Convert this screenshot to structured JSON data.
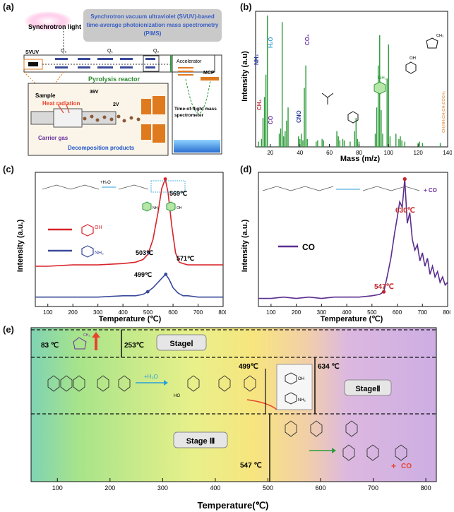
{
  "labels": {
    "a": "(a)",
    "b": "(b)",
    "c": "(c)",
    "d": "(d)",
    "e": "(e)"
  },
  "panel_a": {
    "title_line1": "Synchrotron vacuum ultraviolet (SVUV)-based",
    "title_line2": "time-average photoionization mass spectrometry",
    "title_line3": "(PIMS)",
    "synchrotron_light": "Synchrotron light",
    "svuv": "SVUV",
    "q0": "Q₀",
    "q1": "Q₁",
    "q2": "Q₂",
    "reactor": "Pyrolysis reactor",
    "accelerator": "Accelerator",
    "mcp": "MCP",
    "tof_line1": "Time-of-flight mass",
    "tof_line2": "spectrometer",
    "sample": "Sample",
    "heat": "Heat radiation",
    "v36": "36V",
    "v2": "2V",
    "carrier": "Carrier gas",
    "decomp": "Decomposition products",
    "colors": {
      "title_text": "#3a5fc4",
      "reactor_text": "#2e8b2e",
      "heat": "#e8432e",
      "carrier": "#6a2fa0",
      "decomp": "#2255cc"
    }
  },
  "panel_b": {
    "xlabel": "Mass (m/z)",
    "ylabel": "Intensity (a.u)",
    "xticks": [
      "20",
      "40",
      "60",
      "80",
      "100",
      "120",
      "140"
    ],
    "peak_labels": {
      "nh3": "NH₃",
      "h2o": "H₂O",
      "ch4": "CH₄",
      "co": "CO",
      "cno": "CNO",
      "co2": "CO₂",
      "nh2": "NH₂",
      "oh": "OH",
      "ch3": "CH₃",
      "side": "CH₂NH₃CH₂CH₃COCH₃"
    },
    "colors": {
      "nh3": "#2a3b9c",
      "h2o": "#3aa0d8",
      "ch4": "#c0282d",
      "co": "#6a2fa0",
      "cno": "#2a3b9c",
      "co2": "#6a2fa0",
      "side": "#e07a1f"
    }
  },
  "chart_data": [
    {
      "type": "bar",
      "title": "",
      "xlabel": "Mass (m/z)",
      "ylabel": "Intensity (a.u)",
      "xlim": [
        10,
        140
      ],
      "x": [
        12,
        14,
        15,
        16,
        17,
        18,
        26,
        27,
        28,
        29,
        30,
        31,
        32,
        39,
        40,
        41,
        42,
        43,
        44,
        45,
        51,
        52,
        55,
        56,
        65,
        66,
        67,
        69,
        70,
        74,
        77,
        78,
        79,
        80,
        91,
        92,
        93,
        94,
        95,
        96,
        99,
        100,
        101,
        105,
        107,
        108,
        109,
        111,
        120,
        121,
        123,
        135
      ],
      "values": [
        0.04,
        0.06,
        0.22,
        0.38,
        0.55,
        1.0,
        0.1,
        0.14,
        0.95,
        0.08,
        0.12,
        0.2,
        0.3,
        0.08,
        0.06,
        0.1,
        0.05,
        0.45,
        0.62,
        0.06,
        0.04,
        0.05,
        0.06,
        0.05,
        0.12,
        0.08,
        0.05,
        0.06,
        0.05,
        0.04,
        0.12,
        0.22,
        0.06,
        0.04,
        0.1,
        0.3,
        0.62,
        0.85,
        0.28,
        0.1,
        0.52,
        0.78,
        0.08,
        0.1,
        0.06,
        0.08,
        0.05,
        0.04,
        0.03,
        0.04,
        0.03,
        0.03
      ]
    },
    {
      "type": "line",
      "title": "",
      "xlabel": "Temperature (℃)",
      "ylabel": "Intensity (a.u.)",
      "xlim": [
        50,
        800
      ],
      "xticks": [
        100,
        200,
        300,
        400,
        500,
        600,
        700,
        800
      ],
      "series": [
        {
          "name": "phenol",
          "color": "#d8242a",
          "x": [
            50,
            100,
            200,
            300,
            400,
            450,
            480,
            500,
            520,
            540,
            555,
            569,
            580,
            595,
            610,
            625,
            640,
            660,
            700,
            800
          ],
          "values": [
            0.3,
            0.3,
            0.31,
            0.31,
            0.32,
            0.33,
            0.35,
            0.39,
            0.5,
            0.7,
            0.88,
            0.95,
            0.85,
            0.6,
            0.4,
            0.33,
            0.32,
            0.31,
            0.31,
            0.31
          ]
        },
        {
          "name": "aniline",
          "color": "#3a4a9a",
          "x": [
            50,
            100,
            200,
            300,
            400,
            450,
            480,
            499,
            520,
            540,
            560,
            571,
            585,
            600,
            620,
            640,
            660,
            700,
            800
          ],
          "values": [
            0.07,
            0.07,
            0.07,
            0.07,
            0.08,
            0.08,
            0.09,
            0.11,
            0.14,
            0.18,
            0.22,
            0.24,
            0.2,
            0.14,
            0.1,
            0.08,
            0.08,
            0.07,
            0.07
          ]
        }
      ],
      "annotations": [
        "569℃",
        "503℃",
        "571℃",
        "499℃"
      ]
    },
    {
      "type": "line",
      "title": "",
      "xlabel": "Temperature (℃)",
      "ylabel": "Intensity (a.u.)",
      "xlim": [
        50,
        800
      ],
      "xticks": [
        100,
        200,
        300,
        400,
        500,
        600,
        700,
        800
      ],
      "series": [
        {
          "name": "CO",
          "color": "#5b2d8f",
          "x": [
            50,
            100,
            150,
            200,
            250,
            300,
            350,
            400,
            450,
            500,
            530,
            547,
            560,
            575,
            590,
            600,
            610,
            620,
            630,
            640,
            650,
            660,
            670,
            680,
            690,
            700,
            710,
            720,
            730,
            740,
            750,
            760,
            770,
            780,
            790,
            800
          ],
          "values": [
            0.06,
            0.06,
            0.07,
            0.06,
            0.07,
            0.06,
            0.07,
            0.07,
            0.07,
            0.08,
            0.09,
            0.11,
            0.22,
            0.36,
            0.55,
            0.66,
            0.78,
            0.74,
            0.95,
            0.62,
            0.7,
            0.5,
            0.42,
            0.46,
            0.34,
            0.4,
            0.3,
            0.36,
            0.24,
            0.3,
            0.22,
            0.26,
            0.18,
            0.22,
            0.16,
            0.18
          ]
        }
      ],
      "annotations": [
        "630℃",
        "547℃"
      ]
    }
  ],
  "panel_c": {
    "xlabel": "Temperature (℃)",
    "ylabel": "Intensity (a.u.)",
    "xticks": [
      "100",
      "200",
      "300",
      "400",
      "500",
      "600",
      "700",
      "800"
    ],
    "peak_569": "569℃",
    "onset_503": "503℃",
    "peak_571": "571℃",
    "onset_499": "499℃",
    "legend_nh2": "NH₂",
    "h2o_label": "+H₂O",
    "oh": "OH",
    "nh2": "NH₂"
  },
  "panel_d": {
    "xlabel": "Temperature (℃)",
    "ylabel": "Intensity (a.u.)",
    "xticks": [
      "100",
      "200",
      "300",
      "400",
      "500",
      "600",
      "700",
      "800"
    ],
    "peak_630": "630℃",
    "onset_547": "547℃",
    "legend_co": "CO",
    "scheme_co": "+ CO"
  },
  "panel_e": {
    "xlabel": "Temperature(℃)",
    "xticks": [
      "100",
      "200",
      "300",
      "400",
      "500",
      "600",
      "700",
      "800"
    ],
    "t83": "83 ℃",
    "t253": "253℃",
    "stage1": "StageⅠ",
    "t499": "499℃",
    "t634": "634 ℃",
    "stage2": "StageⅡ",
    "h2o": "+H₂O",
    "oh": "OH",
    "nh2": "NH₂",
    "stage3": "Stage Ⅲ",
    "t547": "547 ℃",
    "plus_co": "+",
    "co": "CO",
    "ho": "HO",
    "ch3": "CH₃",
    "colors": {
      "accent": "#e8432e",
      "green": "#2e9b3a",
      "blue": "#2aa0d8"
    }
  }
}
